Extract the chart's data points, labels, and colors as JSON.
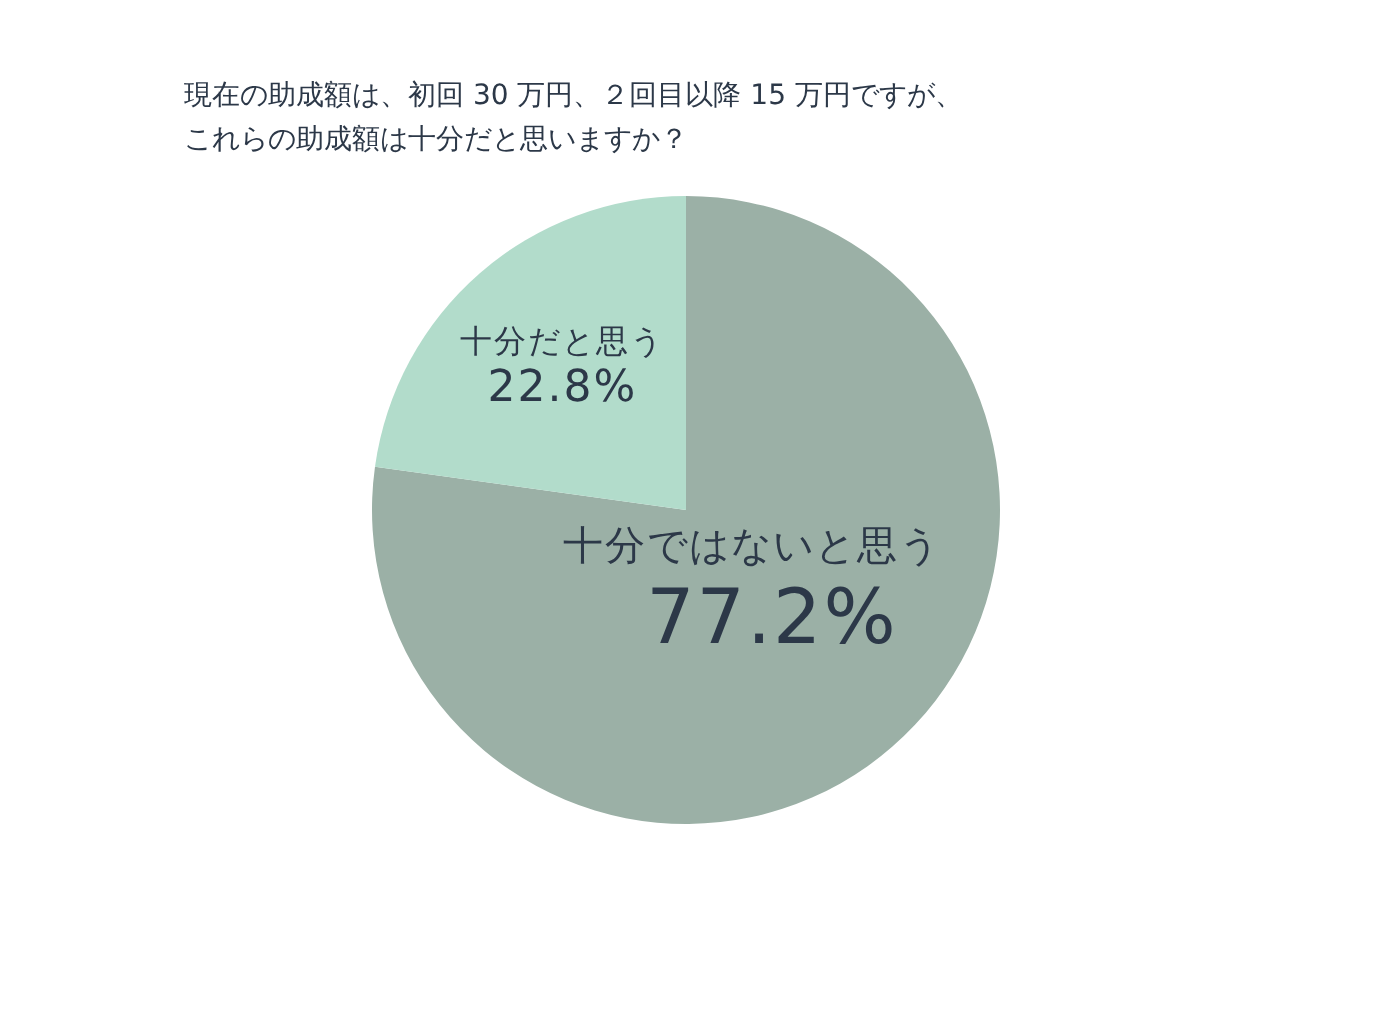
{
  "chart_data": {
    "type": "pie",
    "title": "現在の助成額は、初回 30 万円、２回目以降 15 万円ですが、これらの助成額は十分だと思いますか？",
    "categories": [
      "十分ではないと思う",
      "十分だと思う"
    ],
    "values": [
      77.2,
      22.8
    ],
    "colors": [
      "#9bb0a6",
      "#b2dccb"
    ],
    "value_labels": [
      "77.2%",
      "22.8%"
    ]
  }
}
